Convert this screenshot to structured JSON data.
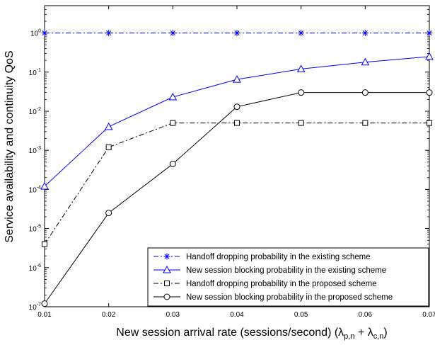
{
  "chart_data": {
    "type": "line",
    "title": "",
    "xlabel": "New session arrival rate (sessions/second) (λ",
    "xlabel_sub1": "p,n",
    "xlabel_mid": " + λ",
    "xlabel_sub2": "c,n",
    "xlabel_end": ")",
    "ylabel": "Service availability and continuity QoS",
    "x": [
      0.01,
      0.02,
      0.03,
      0.04,
      0.05,
      0.06,
      0.07
    ],
    "x_tick_labels": [
      "0.01",
      "0.02",
      "0.03",
      "0.04",
      "0.05",
      "0.06",
      "0.07"
    ],
    "xlim": [
      0.01,
      0.07
    ],
    "ylim": [
      1e-07,
      5
    ],
    "yscale": "log",
    "y_tick_exponents": [
      0,
      -1,
      -2,
      -3,
      -4,
      -5,
      -6,
      -7
    ],
    "y_tick_base": "10",
    "grid": false,
    "legend_position": "bottom-right",
    "series": [
      {
        "name": "Handoff dropping probability in the existing scheme",
        "color": "#0000ff",
        "line_style": "dash-dot",
        "marker": "asterisk",
        "values": [
          1,
          1,
          1,
          1,
          1,
          1,
          1
        ]
      },
      {
        "name": "New session blocking probability in the existing scheme",
        "color": "#0000ff",
        "line_style": "solid",
        "marker": "triangle",
        "values": [
          0.00012,
          0.004,
          0.023,
          0.065,
          0.12,
          0.18,
          0.25
        ]
      },
      {
        "name": "Handoff dropping probability in the proposed scheme",
        "color": "#000000",
        "line_style": "dash-dot",
        "marker": "square",
        "values": [
          4e-06,
          0.0012,
          0.005,
          0.005,
          0.005,
          0.005,
          0.005
        ]
      },
      {
        "name": "New session blocking probability in the proposed scheme",
        "color": "#000000",
        "line_style": "solid",
        "marker": "circle",
        "values": [
          1.2e-07,
          2.5e-05,
          0.00045,
          0.013,
          0.03,
          0.03,
          0.03
        ]
      }
    ]
  }
}
